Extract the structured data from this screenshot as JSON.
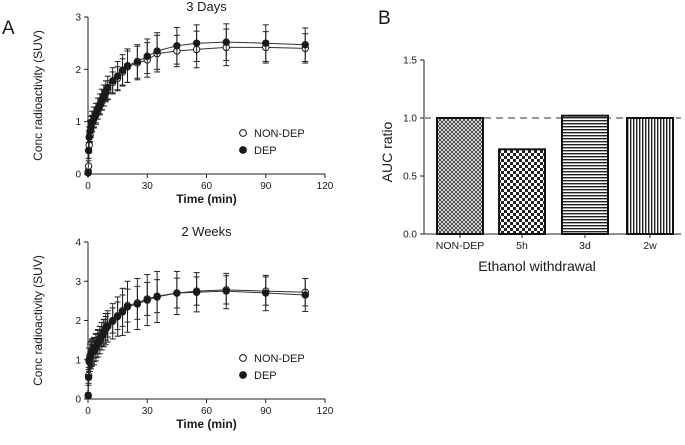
{
  "panel_labels": {
    "a": "A",
    "b": "B"
  },
  "chart_data": [
    {
      "id": "days3",
      "type": "line",
      "title": "3 Days",
      "xlabel": "Time (min)",
      "ylabel": "Conc radioactivity (SUV)",
      "xlim": [
        0,
        120
      ],
      "ylim": [
        0,
        3
      ],
      "xticks": [
        0,
        30,
        60,
        90,
        120
      ],
      "yticks": [
        0,
        1,
        2,
        3
      ],
      "legend_position": "center-right",
      "series": [
        {
          "name": "NON-DEP",
          "marker": "open",
          "x": [
            0.1,
            0.3,
            0.6,
            1,
            1.5,
            2,
            3,
            4,
            5,
            6,
            7,
            8,
            9,
            10,
            12.5,
            15,
            17.5,
            20,
            25,
            30,
            35,
            45,
            55,
            70,
            90,
            110
          ],
          "y": [
            0.05,
            0.15,
            0.55,
            0.75,
            0.88,
            0.97,
            1.05,
            1.13,
            1.2,
            1.3,
            1.38,
            1.45,
            1.55,
            1.6,
            1.75,
            1.83,
            1.95,
            2.05,
            2.12,
            2.18,
            2.3,
            2.35,
            2.38,
            2.42,
            2.42,
            2.4
          ],
          "err": [
            0.05,
            0.1,
            0.15,
            0.15,
            0.15,
            0.15,
            0.15,
            0.15,
            0.15,
            0.15,
            0.15,
            0.15,
            0.15,
            0.18,
            0.2,
            0.22,
            0.25,
            0.3,
            0.32,
            0.33,
            0.35,
            0.3,
            0.35,
            0.35,
            0.3,
            0.28
          ]
        },
        {
          "name": "DEP",
          "marker": "filled",
          "x": [
            0.1,
            0.3,
            0.6,
            1,
            1.5,
            2,
            3,
            4,
            5,
            6,
            7,
            8,
            9,
            10,
            12.5,
            15,
            17.5,
            20,
            25,
            30,
            35,
            45,
            55,
            70,
            90,
            110
          ],
          "y": [
            0.02,
            0.45,
            0.7,
            0.82,
            0.9,
            1.0,
            1.08,
            1.15,
            1.25,
            1.33,
            1.42,
            1.5,
            1.58,
            1.65,
            1.78,
            1.87,
            1.98,
            2.07,
            2.15,
            2.25,
            2.35,
            2.45,
            2.5,
            2.52,
            2.5,
            2.47
          ],
          "err": [
            0.05,
            0.15,
            0.2,
            0.2,
            0.2,
            0.2,
            0.2,
            0.2,
            0.2,
            0.2,
            0.2,
            0.2,
            0.2,
            0.22,
            0.25,
            0.28,
            0.3,
            0.32,
            0.32,
            0.33,
            0.35,
            0.35,
            0.35,
            0.35,
            0.35,
            0.32
          ]
        }
      ]
    },
    {
      "id": "weeks2",
      "type": "line",
      "title": "2 Weeks",
      "xlabel": "Time (min)",
      "ylabel": "Conc radioactivity (SUV)",
      "xlim": [
        0,
        120
      ],
      "ylim": [
        0,
        4
      ],
      "xticks": [
        0,
        30,
        60,
        90,
        120
      ],
      "yticks": [
        0,
        1,
        2,
        3,
        4
      ],
      "legend_position": "bottom-right",
      "series": [
        {
          "name": "NON-DEP",
          "marker": "open",
          "x": [
            0.1,
            0.3,
            0.6,
            1,
            1.5,
            2,
            3,
            4,
            5,
            6,
            7,
            8,
            9,
            10,
            12.5,
            15,
            17.5,
            20,
            25,
            30,
            35,
            45,
            55,
            70,
            90,
            110
          ],
          "y": [
            0.1,
            0.6,
            1.0,
            1.1,
            1.15,
            1.2,
            1.25,
            1.35,
            1.45,
            1.55,
            1.65,
            1.72,
            1.8,
            1.88,
            2.0,
            2.12,
            2.25,
            2.38,
            2.45,
            2.55,
            2.62,
            2.7,
            2.75,
            2.78,
            2.75,
            2.72
          ],
          "err": [
            0.05,
            0.2,
            0.3,
            0.3,
            0.3,
            0.3,
            0.3,
            0.3,
            0.3,
            0.3,
            0.3,
            0.3,
            0.3,
            0.3,
            0.32,
            0.35,
            0.4,
            0.42,
            0.42,
            0.42,
            0.42,
            0.38,
            0.36,
            0.36,
            0.36,
            0.35
          ]
        },
        {
          "name": "DEP",
          "marker": "filled",
          "x": [
            0.1,
            0.3,
            0.6,
            1,
            1.5,
            2,
            3,
            4,
            5,
            6,
            7,
            8,
            9,
            10,
            12.5,
            15,
            17.5,
            20,
            25,
            30,
            35,
            45,
            55,
            70,
            90,
            110
          ],
          "y": [
            0.08,
            0.55,
            0.95,
            1.05,
            1.12,
            1.18,
            1.22,
            1.32,
            1.42,
            1.5,
            1.6,
            1.68,
            1.78,
            1.85,
            1.98,
            2.1,
            2.22,
            2.35,
            2.42,
            2.52,
            2.6,
            2.7,
            2.72,
            2.75,
            2.7,
            2.65
          ],
          "err": [
            0.05,
            0.2,
            0.35,
            0.35,
            0.35,
            0.35,
            0.35,
            0.35,
            0.35,
            0.35,
            0.35,
            0.35,
            0.4,
            0.4,
            0.45,
            0.5,
            0.6,
            0.65,
            0.65,
            0.65,
            0.65,
            0.55,
            0.5,
            0.45,
            0.45,
            0.42
          ]
        }
      ]
    },
    {
      "id": "auc",
      "type": "bar",
      "title": "",
      "xlabel": "Ethanol withdrawal",
      "ylabel": "AUC ratio",
      "ylim": [
        0,
        1.5
      ],
      "yticks": [
        "0.0",
        "0.5",
        "1.0",
        "1.5"
      ],
      "reference_line": 1.0,
      "categories": [
        "NON-DEP",
        "5h",
        "3d",
        "2w"
      ],
      "values": [
        1.0,
        0.73,
        1.02,
        1.0
      ],
      "patterns": [
        "crosshatch",
        "checker",
        "horizontal",
        "vertical"
      ]
    }
  ]
}
